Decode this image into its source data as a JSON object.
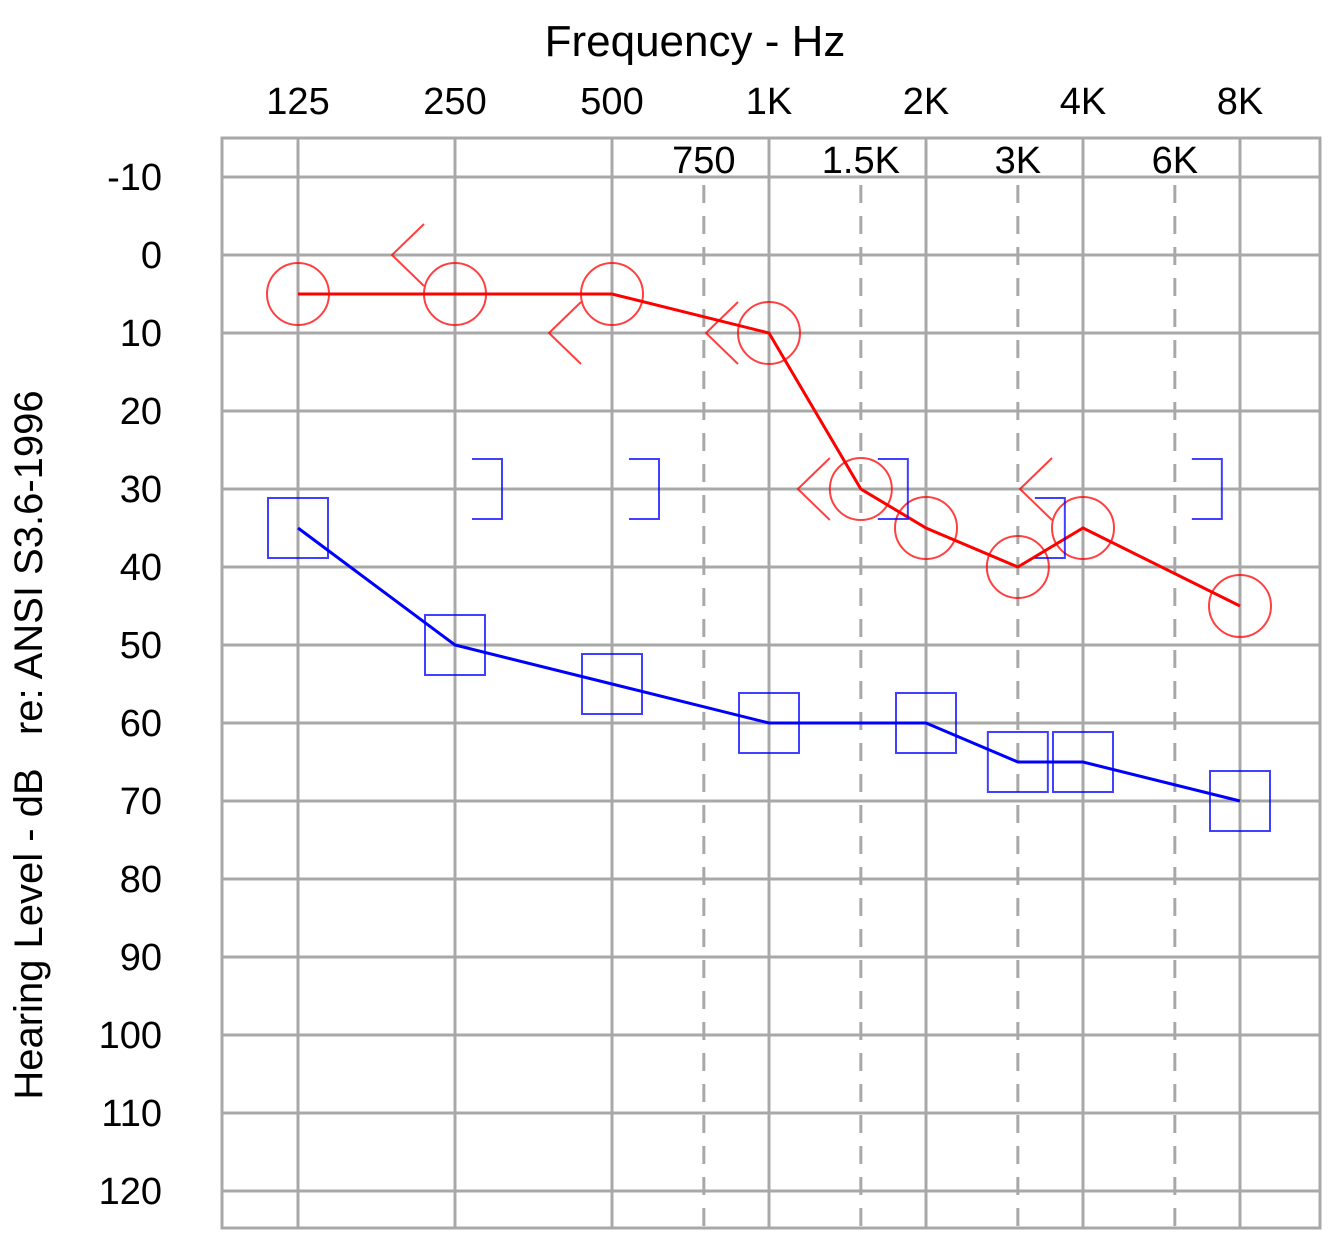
{
  "chart_data": {
    "type": "line",
    "title": "Frequency - Hz",
    "ylabel": "Hearing Level - dB   re: ANSI S3.6-1996",
    "x_ticks_octave": [
      "125",
      "250",
      "500",
      "1K",
      "2K",
      "4K",
      "8K"
    ],
    "x_ticks_interoctave": [
      "750",
      "1.5K",
      "3K",
      "6K"
    ],
    "x_octave_hz": [
      125,
      250,
      500,
      1000,
      2000,
      4000,
      8000
    ],
    "x_interoctave_hz": [
      750,
      1500,
      3000,
      6000
    ],
    "y_ticks": [
      "-10",
      "0",
      "10",
      "20",
      "30",
      "40",
      "50",
      "60",
      "70",
      "80",
      "90",
      "100",
      "110",
      "120"
    ],
    "ylim": [
      -10,
      120
    ],
    "y_inverted": true,
    "x_scale": "log2",
    "grid": true,
    "colors": {
      "right_ear": "#ff0000",
      "left_ear": "#0000ff",
      "grid": "#a8a8a8"
    },
    "series": [
      {
        "marker": "circle",
        "color": "#ff0000",
        "x": [
          125,
          250,
          500,
          1000,
          1500,
          2000,
          3000,
          4000,
          8000
        ],
        "y": [
          5,
          5,
          5,
          10,
          30,
          35,
          40,
          35,
          45
        ]
      },
      {
        "marker": "square",
        "color": "#0000ff",
        "x": [
          125,
          250,
          500,
          1000,
          2000,
          3000,
          4000,
          8000
        ],
        "y": [
          35,
          50,
          55,
          60,
          60,
          65,
          65,
          70
        ]
      },
      {
        "marker": "bone-right",
        "color": "#ff0000",
        "connected": false,
        "x": [
          250,
          500,
          1000,
          1500,
          4000
        ],
        "y": [
          0,
          10,
          10,
          30,
          30
        ]
      },
      {
        "marker": "bone-left",
        "color": "#0000ff",
        "connected": false,
        "x": [
          250,
          500,
          1500,
          3000,
          6000
        ],
        "y": [
          30,
          30,
          30,
          35,
          30
        ]
      }
    ]
  }
}
